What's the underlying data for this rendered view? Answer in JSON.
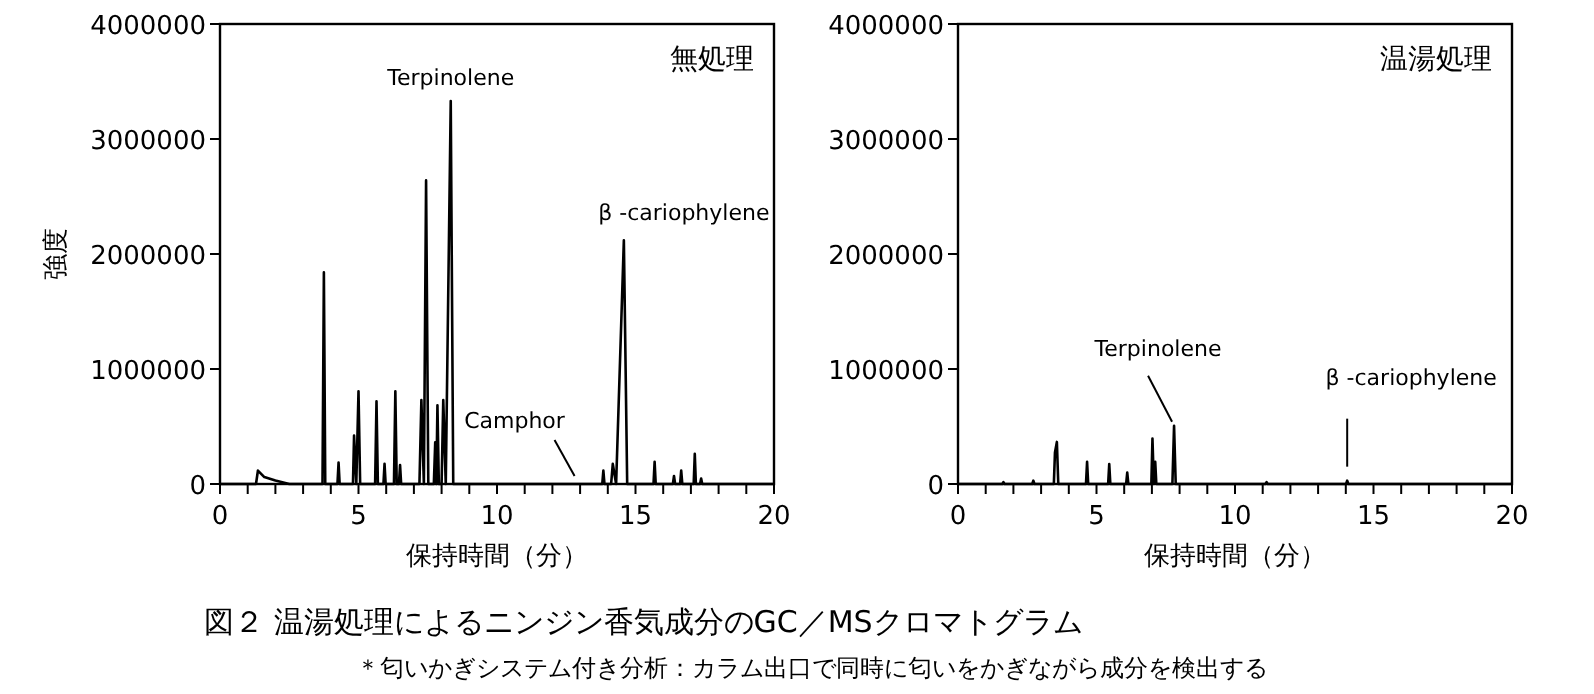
{
  "chart_data": [
    {
      "type": "line",
      "title": "無処理",
      "xlabel": "保持時間（分）",
      "ylabel": "強度",
      "xlim": [
        0,
        20
      ],
      "ylim": [
        0,
        4000000
      ],
      "xticks": [
        0,
        {
          "value": 1,
          "label": null
        },
        {
          "value": 2,
          "label": null
        },
        {
          "value": 3,
          "label": null
        },
        {
          "value": 4,
          "label": null
        },
        5,
        {
          "value": 6,
          "label": null
        },
        {
          "value": 7,
          "label": null
        },
        {
          "value": 8,
          "label": null
        },
        {
          "value": 9,
          "label": null
        },
        10,
        {
          "value": 11,
          "label": null
        },
        {
          "value": 12,
          "label": null
        },
        {
          "value": 13,
          "label": null
        },
        {
          "value": 14,
          "label": null
        },
        15,
        {
          "value": 16,
          "label": null
        },
        {
          "value": 17,
          "label": null
        },
        {
          "value": 18,
          "label": null
        },
        {
          "value": 19,
          "label": null
        },
        20
      ],
      "yticks": [
        0,
        1000000,
        2000000,
        3000000,
        4000000
      ],
      "grid": false,
      "series": [
        {
          "color": "#000000",
          "x": [
            0,
            1.3,
            1.37,
            1.6,
            2.0,
            2.5,
            3.7,
            3.75,
            3.8,
            4.24,
            4.28,
            4.32,
            4.8,
            4.84,
            4.92,
            5.0,
            5.06,
            5.6,
            5.65,
            5.7,
            5.9,
            5.94,
            5.98,
            6.28,
            6.33,
            6.38,
            6.46,
            6.5,
            6.54,
            7.2,
            7.27,
            7.36,
            7.44,
            7.52,
            7.72,
            7.77,
            7.81,
            7.85,
            7.9,
            8.0,
            8.06,
            8.15,
            8.33,
            8.42,
            13.8,
            13.84,
            13.88,
            14.12,
            14.18,
            14.3,
            14.58,
            14.7,
            15.65,
            15.69,
            15.73,
            16.35,
            16.39,
            16.43,
            16.61,
            16.65,
            16.69,
            17.1,
            17.14,
            17.18,
            17.33,
            17.37,
            17.41,
            20
          ],
          "values": [
            0,
            0,
            117000,
            60000,
            30000,
            0,
            0,
            1840000,
            0,
            0,
            187000,
            0,
            0,
            421000,
            0,
            807000,
            0,
            0,
            719000,
            0,
            0,
            175000,
            0,
            0,
            807000,
            0,
            0,
            164000,
            0,
            0,
            731000,
            0,
            2640000,
            0,
            0,
            363000,
            0,
            684000,
            0,
            0,
            731000,
            0,
            3330000,
            0,
            0,
            117000,
            0,
            0,
            175000,
            0,
            2120000,
            0,
            0,
            193000,
            0,
            0,
            70000,
            0,
            0,
            117000,
            0,
            0,
            263000,
            0,
            0,
            47000,
            0,
            0
          ]
        }
      ],
      "annotations": [
        {
          "text": "Terpinolene",
          "x": 8.33,
          "y": 3330000
        },
        {
          "text": "β -cariophylene",
          "x": 14.58,
          "y": 2120000
        },
        {
          "text": "Camphor",
          "x": 12.8,
          "y": 0
        },
        "図２ 温湯処理によるニンジン香気成分のGC／MSクロマトグラム",
        "＊匂いかぎシステム付き分析：カラム出口で同時に匂いをかぎながら成分を検出する"
      ]
    },
    {
      "type": "line",
      "title": "温湯処理",
      "xlabel": "保持時間（分）",
      "xlim": [
        0,
        20
      ],
      "ylim": [
        0,
        4000000
      ],
      "xticks": [
        0,
        {
          "value": 1,
          "label": null
        },
        {
          "value": 2,
          "label": null
        },
        {
          "value": 3,
          "label": null
        },
        {
          "value": 4,
          "label": null
        },
        5,
        {
          "value": 6,
          "label": null
        },
        {
          "value": 7,
          "label": null
        },
        {
          "value": 8,
          "label": null
        },
        {
          "value": 9,
          "label": null
        },
        10,
        {
          "value": 11,
          "label": null
        },
        {
          "value": 12,
          "label": null
        },
        {
          "value": 13,
          "label": null
        },
        {
          "value": 14,
          "label": null
        },
        15,
        {
          "value": 16,
          "label": null
        },
        {
          "value": 17,
          "label": null
        },
        {
          "value": 18,
          "label": null
        },
        {
          "value": 19,
          "label": null
        },
        20
      ],
      "yticks": [
        0,
        1000000,
        2000000,
        3000000,
        4000000
      ],
      "grid": false,
      "series": [
        {
          "color": "#000000",
          "x": [
            0,
            1.6,
            1.64,
            1.68,
            2.68,
            2.72,
            2.76,
            3.46,
            3.5,
            3.57,
            3.62,
            4.62,
            4.66,
            4.7,
            5.42,
            5.46,
            5.5,
            6.07,
            6.11,
            6.15,
            6.98,
            7.02,
            7.07,
            7.12,
            7.16,
            7.74,
            7.8,
            7.86,
            11.1,
            11.14,
            11.18,
            14.01,
            14.05,
            14.09,
            20
          ],
          "values": [
            0,
            0,
            17000,
            0,
            0,
            29000,
            0,
            0,
            273000,
            366000,
            0,
            0,
            192000,
            0,
            0,
            174000,
            0,
            0,
            99000,
            0,
            0,
            395000,
            0,
            192000,
            0,
            0,
            506000,
            0,
            0,
            17000,
            0,
            0,
            29000,
            0,
            0
          ]
        }
      ],
      "annotations": [
        {
          "text": "Terpinolene",
          "x": 7.8,
          "y": 506000
        },
        {
          "text": "β -cariophylene",
          "x": 14.05,
          "y": 29000
        }
      ]
    }
  ]
}
